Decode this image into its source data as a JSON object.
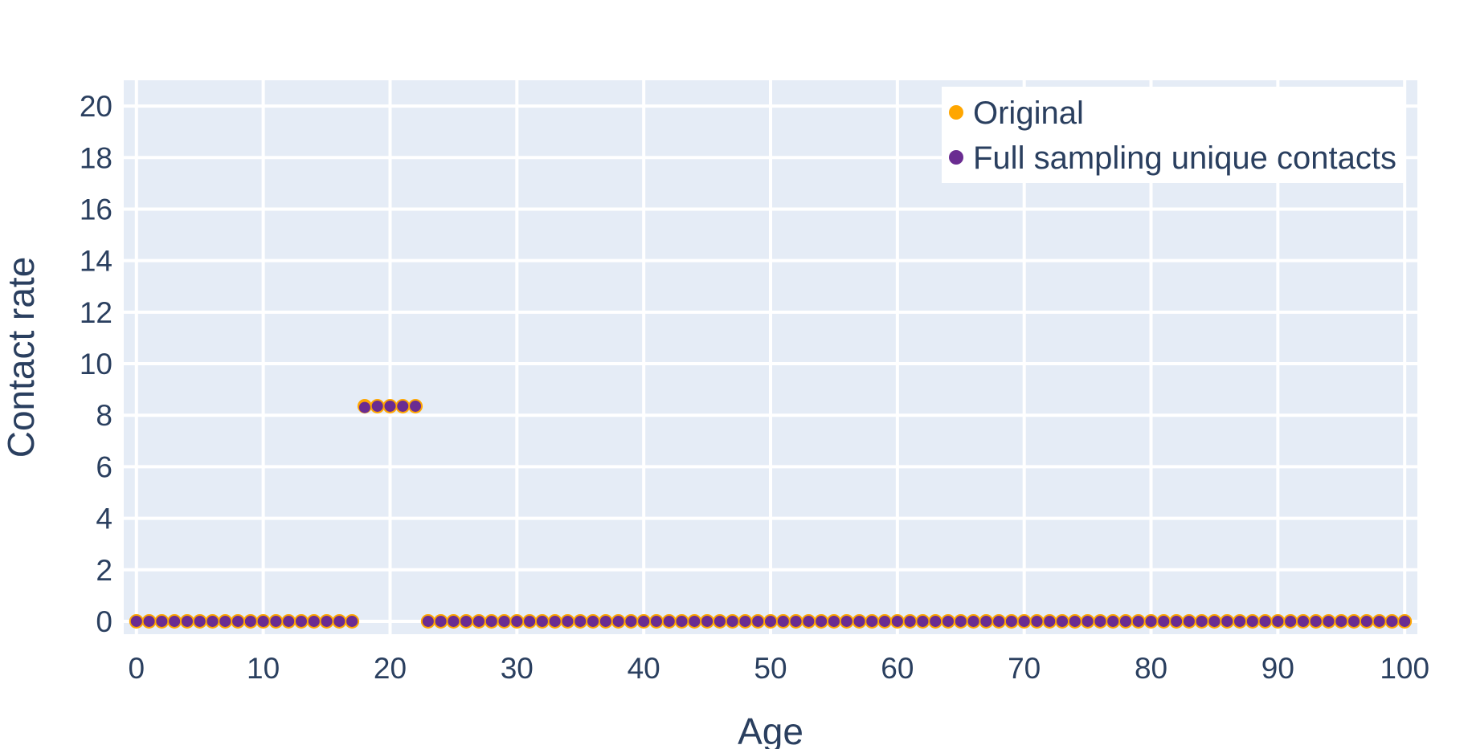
{
  "chart_data": {
    "type": "scatter",
    "title": "",
    "xlabel": "Age",
    "ylabel": "Contact rate",
    "xlim": [
      -1,
      101
    ],
    "ylim": [
      -0.5,
      21
    ],
    "xticks": [
      0,
      10,
      20,
      30,
      40,
      50,
      60,
      70,
      80,
      90,
      100
    ],
    "yticks": [
      0,
      2,
      4,
      6,
      8,
      10,
      12,
      14,
      16,
      18,
      20
    ],
    "grid": true,
    "legend_position": "top-right",
    "plot_background": "#e5ecf6",
    "series": [
      {
        "name": "Original",
        "color": "#ffa600",
        "x": [
          0,
          1,
          2,
          3,
          4,
          5,
          6,
          7,
          8,
          9,
          10,
          11,
          12,
          13,
          14,
          15,
          16,
          17,
          18,
          19,
          20,
          21,
          22,
          23,
          24,
          25,
          26,
          27,
          28,
          29,
          30,
          31,
          32,
          33,
          34,
          35,
          36,
          37,
          38,
          39,
          40,
          41,
          42,
          43,
          44,
          45,
          46,
          47,
          48,
          49,
          50,
          51,
          52,
          53,
          54,
          55,
          56,
          57,
          58,
          59,
          60,
          61,
          62,
          63,
          64,
          65,
          66,
          67,
          68,
          69,
          70,
          71,
          72,
          73,
          74,
          75,
          76,
          77,
          78,
          79,
          80,
          81,
          82,
          83,
          84,
          85,
          86,
          87,
          88,
          89,
          90,
          91,
          92,
          93,
          94,
          95,
          96,
          97,
          98,
          99,
          100
        ],
        "y": [
          0,
          0,
          0,
          0,
          0,
          0,
          0,
          0,
          0,
          0,
          0,
          0,
          0,
          0,
          0,
          0,
          0,
          0,
          8.35,
          8.35,
          8.35,
          8.35,
          8.35,
          0,
          0,
          0,
          0,
          0,
          0,
          0,
          0,
          0,
          0,
          0,
          0,
          0,
          0,
          0,
          0,
          0,
          0,
          0,
          0,
          0,
          0,
          0,
          0,
          0,
          0,
          0,
          0,
          0,
          0,
          0,
          0,
          0,
          0,
          0,
          0,
          0,
          0,
          0,
          0,
          0,
          0,
          0,
          0,
          0,
          0,
          0,
          0,
          0,
          0,
          0,
          0,
          0,
          0,
          0,
          0,
          0,
          0,
          0,
          0,
          0,
          0,
          0,
          0,
          0,
          0,
          0,
          0,
          0,
          0,
          0,
          0,
          0,
          0,
          0,
          0,
          0,
          0
        ]
      },
      {
        "name": "Full sampling unique contacts",
        "color": "#6a2c91",
        "x": [
          0,
          1,
          2,
          3,
          4,
          5,
          6,
          7,
          8,
          9,
          10,
          11,
          12,
          13,
          14,
          15,
          16,
          17,
          18,
          19,
          20,
          21,
          22,
          23,
          24,
          25,
          26,
          27,
          28,
          29,
          30,
          31,
          32,
          33,
          34,
          35,
          36,
          37,
          38,
          39,
          40,
          41,
          42,
          43,
          44,
          45,
          46,
          47,
          48,
          49,
          50,
          51,
          52,
          53,
          54,
          55,
          56,
          57,
          58,
          59,
          60,
          61,
          62,
          63,
          64,
          65,
          66,
          67,
          68,
          69,
          70,
          71,
          72,
          73,
          74,
          75,
          76,
          77,
          78,
          79,
          80,
          81,
          82,
          83,
          84,
          85,
          86,
          87,
          88,
          89,
          90,
          91,
          92,
          93,
          94,
          95,
          96,
          97,
          98,
          99,
          100
        ],
        "y": [
          0,
          0,
          0,
          0,
          0,
          0,
          0,
          0,
          0,
          0,
          0,
          0,
          0,
          0,
          0,
          0,
          0,
          0,
          8.3,
          8.35,
          8.35,
          8.35,
          8.35,
          0,
          0,
          0,
          0,
          0,
          0,
          0,
          0,
          0,
          0,
          0,
          0,
          0,
          0,
          0,
          0,
          0,
          0,
          0,
          0,
          0,
          0,
          0,
          0,
          0,
          0,
          0,
          0,
          0,
          0,
          0,
          0,
          0,
          0,
          0,
          0,
          0,
          0,
          0,
          0,
          0,
          0,
          0,
          0,
          0,
          0,
          0,
          0,
          0,
          0,
          0,
          0,
          0,
          0,
          0,
          0,
          0,
          0,
          0,
          0,
          0,
          0,
          0,
          0,
          0,
          0,
          0,
          0,
          0,
          0,
          0,
          0,
          0,
          0,
          0,
          0,
          0,
          0
        ]
      }
    ]
  }
}
